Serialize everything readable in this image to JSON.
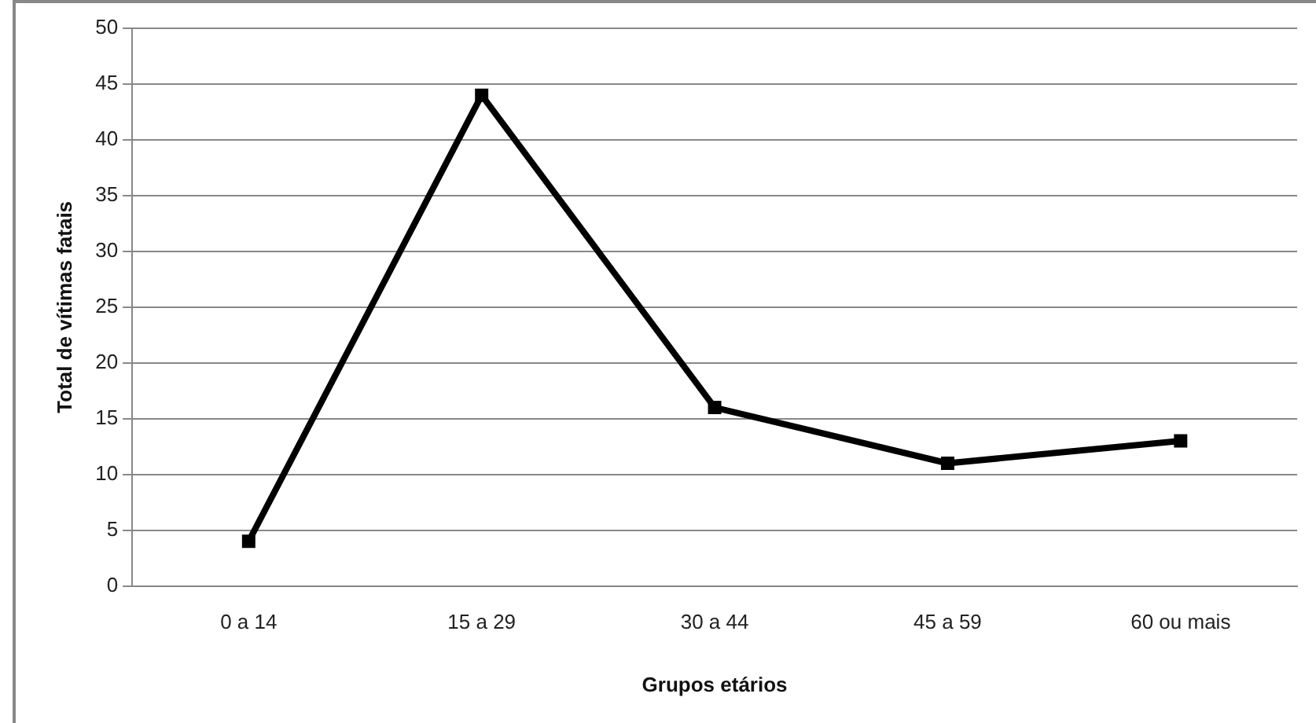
{
  "chart_data": {
    "type": "line",
    "xlabel": "Grupos etários",
    "ylabel": "Total de vítimas fatais",
    "categories": [
      "0 a 14",
      "15 a 29",
      "30 a 44",
      "45 a 59",
      "60 ou mais"
    ],
    "series": [
      {
        "color": "#000000",
        "values": [
          4,
          44,
          16,
          11,
          13
        ]
      }
    ],
    "ylim": [
      0,
      50
    ],
    "yticks": [
      0,
      5,
      10,
      15,
      20,
      25,
      30,
      35,
      40,
      45,
      50
    ],
    "grid": "y",
    "legend": false,
    "marker": "square",
    "line_style": "solid"
  }
}
